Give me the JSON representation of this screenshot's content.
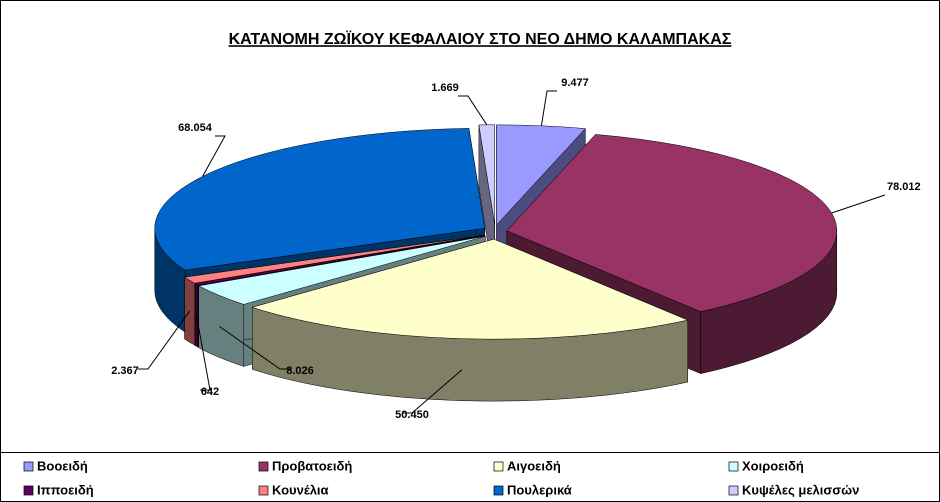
{
  "chart_data": {
    "type": "pie3d",
    "title": "ΚΑΤΑΝΟΜΗ ΖΩΪΚΟΥ ΚΕΦΑΛΑΙΟΥ ΣΤΟ ΝΕΟ ΔΗΜΟ ΚΑΛΑΜΠΑΚΑΣ",
    "categories": [
      "Βοοειδή",
      "Προβατοειδή",
      "Αιγοειδή",
      "Χοιροειδή",
      "Ιπποειδή",
      "Κουνέλια",
      "Πουλερικά",
      "Κυψέλες μελισσών"
    ],
    "values": [
      9477,
      78012,
      50450,
      8026,
      642,
      2367,
      68054,
      1669
    ],
    "value_labels": [
      "9.477",
      "78.012",
      "50.450",
      "8.026",
      "642",
      "2.367",
      "68.054",
      "1.669"
    ],
    "colors": [
      "#9999ff",
      "#993366",
      "#ffffcc",
      "#ccffff",
      "#660066",
      "#ff8080",
      "#0066cc",
      "#ccccff"
    ],
    "legend": "bottom"
  }
}
